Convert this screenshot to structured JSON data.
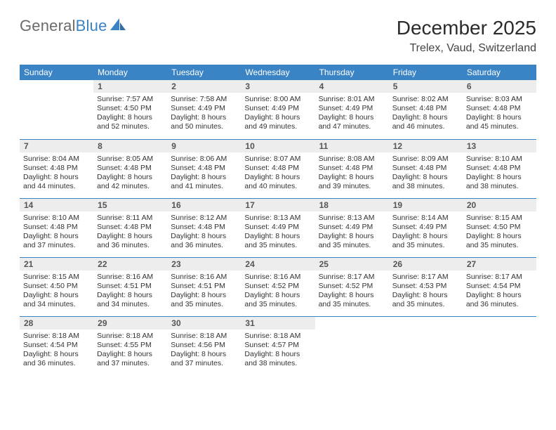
{
  "brand": {
    "part1": "General",
    "part2": "Blue"
  },
  "title": "December 2025",
  "location": "Trelex, Vaud, Switzerland",
  "colors": {
    "header_bg": "#3a83c4",
    "header_text": "#ffffff",
    "rule": "#3a83c4",
    "daynum_bg": "#ededed",
    "body_text": "#333333",
    "brand_gray": "#6b6b6b",
    "brand_blue": "#3a83c4"
  },
  "font": {
    "family": "Arial",
    "daynum_size_pt": 9,
    "cell_size_pt": 8,
    "title_size_pt": 21,
    "subtitle_size_pt": 12
  },
  "first_weekday_index": 1,
  "days_in_month": 31,
  "headers": [
    "Sunday",
    "Monday",
    "Tuesday",
    "Wednesday",
    "Thursday",
    "Friday",
    "Saturday"
  ],
  "days": [
    {
      "n": 1,
      "sunrise": "7:57 AM",
      "sunset": "4:50 PM",
      "daylight": "8 hours and 52 minutes."
    },
    {
      "n": 2,
      "sunrise": "7:58 AM",
      "sunset": "4:49 PM",
      "daylight": "8 hours and 50 minutes."
    },
    {
      "n": 3,
      "sunrise": "8:00 AM",
      "sunset": "4:49 PM",
      "daylight": "8 hours and 49 minutes."
    },
    {
      "n": 4,
      "sunrise": "8:01 AM",
      "sunset": "4:49 PM",
      "daylight": "8 hours and 47 minutes."
    },
    {
      "n": 5,
      "sunrise": "8:02 AM",
      "sunset": "4:48 PM",
      "daylight": "8 hours and 46 minutes."
    },
    {
      "n": 6,
      "sunrise": "8:03 AM",
      "sunset": "4:48 PM",
      "daylight": "8 hours and 45 minutes."
    },
    {
      "n": 7,
      "sunrise": "8:04 AM",
      "sunset": "4:48 PM",
      "daylight": "8 hours and 44 minutes."
    },
    {
      "n": 8,
      "sunrise": "8:05 AM",
      "sunset": "4:48 PM",
      "daylight": "8 hours and 42 minutes."
    },
    {
      "n": 9,
      "sunrise": "8:06 AM",
      "sunset": "4:48 PM",
      "daylight": "8 hours and 41 minutes."
    },
    {
      "n": 10,
      "sunrise": "8:07 AM",
      "sunset": "4:48 PM",
      "daylight": "8 hours and 40 minutes."
    },
    {
      "n": 11,
      "sunrise": "8:08 AM",
      "sunset": "4:48 PM",
      "daylight": "8 hours and 39 minutes."
    },
    {
      "n": 12,
      "sunrise": "8:09 AM",
      "sunset": "4:48 PM",
      "daylight": "8 hours and 38 minutes."
    },
    {
      "n": 13,
      "sunrise": "8:10 AM",
      "sunset": "4:48 PM",
      "daylight": "8 hours and 38 minutes."
    },
    {
      "n": 14,
      "sunrise": "8:10 AM",
      "sunset": "4:48 PM",
      "daylight": "8 hours and 37 minutes."
    },
    {
      "n": 15,
      "sunrise": "8:11 AM",
      "sunset": "4:48 PM",
      "daylight": "8 hours and 36 minutes."
    },
    {
      "n": 16,
      "sunrise": "8:12 AM",
      "sunset": "4:48 PM",
      "daylight": "8 hours and 36 minutes."
    },
    {
      "n": 17,
      "sunrise": "8:13 AM",
      "sunset": "4:49 PM",
      "daylight": "8 hours and 35 minutes."
    },
    {
      "n": 18,
      "sunrise": "8:13 AM",
      "sunset": "4:49 PM",
      "daylight": "8 hours and 35 minutes."
    },
    {
      "n": 19,
      "sunrise": "8:14 AM",
      "sunset": "4:49 PM",
      "daylight": "8 hours and 35 minutes."
    },
    {
      "n": 20,
      "sunrise": "8:15 AM",
      "sunset": "4:50 PM",
      "daylight": "8 hours and 35 minutes."
    },
    {
      "n": 21,
      "sunrise": "8:15 AM",
      "sunset": "4:50 PM",
      "daylight": "8 hours and 34 minutes."
    },
    {
      "n": 22,
      "sunrise": "8:16 AM",
      "sunset": "4:51 PM",
      "daylight": "8 hours and 34 minutes."
    },
    {
      "n": 23,
      "sunrise": "8:16 AM",
      "sunset": "4:51 PM",
      "daylight": "8 hours and 35 minutes."
    },
    {
      "n": 24,
      "sunrise": "8:16 AM",
      "sunset": "4:52 PM",
      "daylight": "8 hours and 35 minutes."
    },
    {
      "n": 25,
      "sunrise": "8:17 AM",
      "sunset": "4:52 PM",
      "daylight": "8 hours and 35 minutes."
    },
    {
      "n": 26,
      "sunrise": "8:17 AM",
      "sunset": "4:53 PM",
      "daylight": "8 hours and 35 minutes."
    },
    {
      "n": 27,
      "sunrise": "8:17 AM",
      "sunset": "4:54 PM",
      "daylight": "8 hours and 36 minutes."
    },
    {
      "n": 28,
      "sunrise": "8:18 AM",
      "sunset": "4:54 PM",
      "daylight": "8 hours and 36 minutes."
    },
    {
      "n": 29,
      "sunrise": "8:18 AM",
      "sunset": "4:55 PM",
      "daylight": "8 hours and 37 minutes."
    },
    {
      "n": 30,
      "sunrise": "8:18 AM",
      "sunset": "4:56 PM",
      "daylight": "8 hours and 37 minutes."
    },
    {
      "n": 31,
      "sunrise": "8:18 AM",
      "sunset": "4:57 PM",
      "daylight": "8 hours and 38 minutes."
    }
  ],
  "labels": {
    "sunrise": "Sunrise:",
    "sunset": "Sunset:",
    "daylight": "Daylight:"
  }
}
